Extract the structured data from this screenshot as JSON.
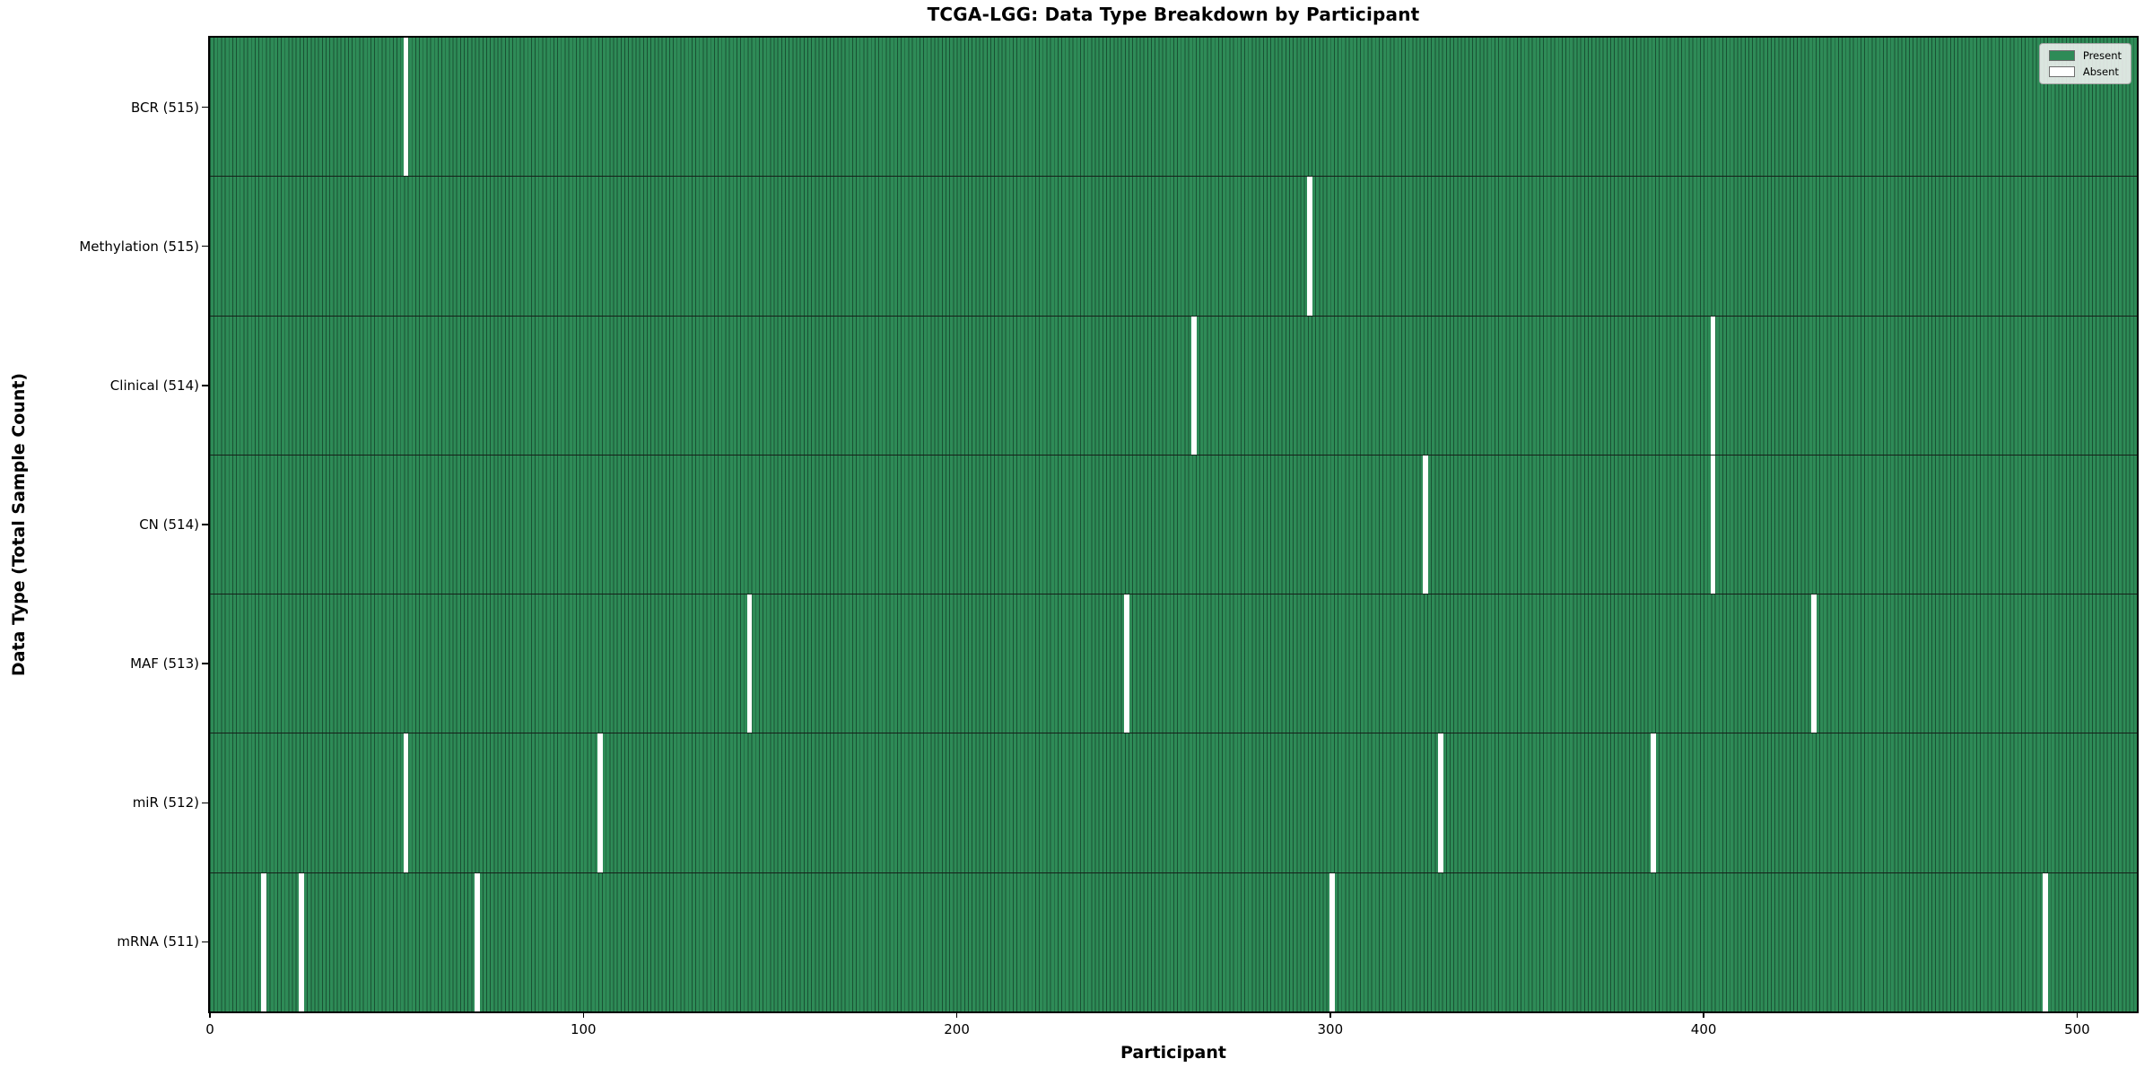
{
  "chart_data": {
    "type": "heatmap",
    "title": "TCGA-LGG: Data Type Breakdown by Participant",
    "xlabel": "Participant",
    "ylabel": "Data Type (Total Sample Count)",
    "x_ticks": [
      0,
      100,
      200,
      300,
      400,
      500
    ],
    "xlim": [
      0,
      516
    ],
    "n_participants": 516,
    "grid": false,
    "colors": {
      "present": "#2e8b57",
      "cell_edge": "#173826",
      "absent": "#ffffff",
      "legend_background": "#f2f2f2"
    },
    "legend": {
      "position": "upper right",
      "entries": [
        {
          "label": "Present",
          "color": "#2e8b57"
        },
        {
          "label": "Absent",
          "color": "#ffffff"
        }
      ]
    },
    "rows": [
      {
        "label": "BCR (515)",
        "data_type": "BCR",
        "present_count": 515,
        "absent_participants": [
          52
        ]
      },
      {
        "label": "Methylation (515)",
        "data_type": "Methylation",
        "present_count": 515,
        "absent_participants": [
          294
        ]
      },
      {
        "label": "Clinical (514)",
        "data_type": "Clinical",
        "present_count": 514,
        "absent_participants": [
          263,
          402
        ]
      },
      {
        "label": "CN (514)",
        "data_type": "CN",
        "present_count": 514,
        "absent_participants": [
          325,
          402
        ]
      },
      {
        "label": "MAF (513)",
        "data_type": "MAF",
        "present_count": 513,
        "absent_participants": [
          144,
          245,
          429
        ]
      },
      {
        "label": "miR (512)",
        "data_type": "miR",
        "present_count": 512,
        "absent_participants": [
          52,
          104,
          329,
          386
        ]
      },
      {
        "label": "mRNA (511)",
        "data_type": "mRNA",
        "present_count": 511,
        "absent_participants": [
          14,
          24,
          71,
          300,
          491
        ]
      }
    ]
  }
}
